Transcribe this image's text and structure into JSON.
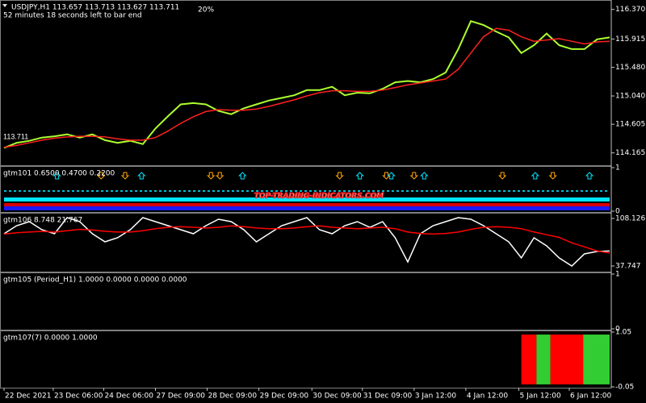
{
  "chart_data": [
    {
      "type": "line",
      "title": "USDJPY,H1  113.657 113.713 113.627 113.711",
      "subtitle": "52 minutes 18 seconds left to bar end",
      "annotation": "20%",
      "price_label": "113.711",
      "x": [
        0,
        1,
        2,
        3,
        4,
        5,
        6,
        7,
        8,
        9,
        10,
        11,
        12,
        13,
        14,
        15,
        16,
        17,
        18,
        19,
        20,
        21,
        22,
        23,
        24,
        25,
        26,
        27,
        28,
        29,
        30,
        31,
        32,
        33,
        34,
        35,
        36,
        37,
        38,
        39,
        40,
        41,
        42,
        43,
        44,
        45,
        46,
        47,
        48
      ],
      "series": [
        {
          "color": "#adff2f",
          "values": [
            114.24,
            114.32,
            114.35,
            114.4,
            114.42,
            114.45,
            114.4,
            114.45,
            114.36,
            114.32,
            114.35,
            114.3,
            114.54,
            114.73,
            114.91,
            114.93,
            114.91,
            114.81,
            114.76,
            114.85,
            114.91,
            114.97,
            115.01,
            115.05,
            115.13,
            115.13,
            115.18,
            115.05,
            115.09,
            115.08,
            115.15,
            115.25,
            115.27,
            115.25,
            115.3,
            115.4,
            115.76,
            116.19,
            116.13,
            116.03,
            115.94,
            115.7,
            115.82,
            116.0,
            115.82,
            115.76,
            115.76,
            115.91,
            115.94
          ]
        },
        {
          "color": "#ff2020",
          "values": [
            114.25,
            114.28,
            114.32,
            114.36,
            114.39,
            114.41,
            114.42,
            114.42,
            114.41,
            114.38,
            114.36,
            114.36,
            114.4,
            114.5,
            114.62,
            114.72,
            114.8,
            114.83,
            114.82,
            114.82,
            114.84,
            114.88,
            114.93,
            114.98,
            115.04,
            115.09,
            115.12,
            115.12,
            115.11,
            115.11,
            115.13,
            115.17,
            115.21,
            115.24,
            115.27,
            115.3,
            115.45,
            115.7,
            115.95,
            116.08,
            116.05,
            115.95,
            115.88,
            115.9,
            115.92,
            115.88,
            115.84,
            115.87,
            115.88
          ]
        }
      ],
      "xlim": [
        0,
        48
      ],
      "xticks": [
        {
          "value": 0,
          "label": "22 Dec 2021"
        },
        {
          "value": 3.9,
          "label": "23 Dec 06:00"
        },
        {
          "value": 7.9,
          "label": "24 Dec 06:00"
        },
        {
          "value": 12.0,
          "label": "27 Dec 09:00"
        },
        {
          "value": 16.1,
          "label": "28 Dec 09:00"
        },
        {
          "value": 20.2,
          "label": "29 Dec 09:00"
        },
        {
          "value": 24.4,
          "label": "30 Dec 09:00"
        },
        {
          "value": 28.4,
          "label": "31 Dec 09:00"
        },
        {
          "value": 32.5,
          "label": "3 Jan 12:00"
        },
        {
          "value": 36.6,
          "label": "4 Jan 12:00"
        },
        {
          "value": 40.8,
          "label": "5 Jan 12:00"
        },
        {
          "value": 44.8,
          "label": "6 Jan 12:00"
        }
      ],
      "ylim": [
        114.0,
        116.49
      ],
      "yticks": [
        {
          "value": 116.37,
          "label": "116.370"
        },
        115.915,
        {
          "value": 115.48,
          "label": "115.480"
        },
        {
          "value": 115.04,
          "label": "115.040"
        },
        114.605,
        114.165
      ]
    },
    {
      "type": "signals",
      "title": "gtm101 0.6500 0.4700 0.2200",
      "watermark": "TOP-TRADING-INDICATORS.COM",
      "down_arrows": [
        7.7,
        9.6,
        16.4,
        17.1,
        26.6,
        30.3,
        32.5,
        39.5,
        43.5
      ],
      "up_arrows": [
        4.2,
        10.9,
        18.9,
        28.2,
        30.7,
        33.3,
        42.1,
        46.4
      ],
      "down_color": "#ffa500",
      "up_color": "#00e5ff",
      "xlim": [
        0,
        48
      ],
      "ylim": [
        0,
        1
      ],
      "yticks": [
        1,
        0
      ]
    },
    {
      "type": "line",
      "title": "gtm106 8.748 21.767",
      "x": [
        0,
        1,
        2,
        3,
        4,
        5,
        6,
        7,
        8,
        9,
        10,
        11,
        12,
        13,
        14,
        15,
        16,
        17,
        18,
        19,
        20,
        21,
        22,
        23,
        24,
        25,
        26,
        27,
        28,
        29,
        30,
        31,
        32,
        33,
        34,
        35,
        36,
        37,
        38,
        39,
        40,
        41,
        42,
        43,
        44,
        45,
        46,
        47,
        48
      ],
      "series": [
        {
          "color": "#ffffff",
          "values": [
            85.5,
            97.4,
            103.4,
            91.4,
            85.5,
            109.3,
            103.4,
            85.5,
            73.5,
            79.5,
            91.4,
            109.3,
            103.4,
            97.4,
            91.4,
            85.5,
            97.4,
            106.9,
            103.4,
            91.4,
            73.5,
            85.5,
            97.4,
            103.4,
            109.3,
            91.4,
            85.5,
            97.4,
            103.4,
            95.0,
            103.4,
            79.5,
            43.7,
            85.5,
            97.4,
            103.4,
            109.3,
            106.9,
            97.4,
            85.5,
            73.5,
            49.7,
            79.5,
            67.6,
            49.7,
            37.7,
            55.6,
            59.2,
            60.0
          ]
        },
        {
          "color": "#ff0000",
          "values": [
            85,
            87,
            88,
            89,
            88,
            90,
            92,
            91,
            89,
            88,
            88,
            90,
            93,
            95,
            96,
            95,
            94,
            95,
            97,
            96,
            94,
            93,
            93,
            94,
            96,
            97,
            95,
            94,
            93,
            94,
            95,
            93,
            88,
            86,
            85,
            86,
            88,
            92,
            95,
            96,
            95,
            93,
            88,
            84,
            80,
            72,
            66,
            60,
            57
          ]
        }
      ],
      "xlim": [
        0,
        48
      ],
      "ylim": [
        30.6,
        114.1
      ],
      "yticks": [
        {
          "value": 108.126,
          "label": "108.126"
        },
        37.747
      ]
    },
    {
      "type": "empty",
      "title": "gtm105 (Period_H1) 1.0000 0.0000 0.0000 0.0000",
      "ylim": [
        0,
        1
      ],
      "yticks": [
        1,
        0
      ]
    },
    {
      "type": "histogram",
      "title": "gtm107(7) 0.0000 1.0000",
      "bins": [
        41,
        42.2,
        43.3,
        45.9,
        48
      ],
      "values": [
        1,
        1,
        1,
        1
      ],
      "colors": [
        "#ff0000",
        "#32cd32",
        "#ff0000",
        "#32cd32"
      ],
      "xlim": [
        0,
        48
      ],
      "ylim": [
        -0.05,
        1.05
      ],
      "yticks": [
        1.05,
        -0.05
      ]
    }
  ]
}
